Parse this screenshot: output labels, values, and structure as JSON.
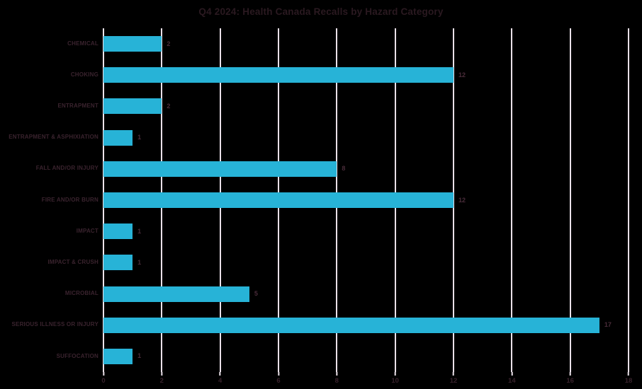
{
  "title": "Q4 2024: Health Canada Recalls by Hazard Category",
  "colors": {
    "background": "#000000",
    "bar": "#27B3D7",
    "gridline": "#E9E0E8",
    "axis_line": "#ECE3EA",
    "title_text": "#2A1920",
    "category_text": "#3A232E",
    "value_text": "#4A2C3A",
    "tick_text": "#38222C"
  },
  "chart_data": {
    "type": "bar",
    "orientation": "horizontal",
    "title": "Q4 2024: Health Canada Recalls by Hazard Category",
    "categories": [
      "CHEMICAL",
      "CHOKING",
      "ENTRAPMENT",
      "ENTRAPMENT & ASPHIXIATION",
      "FALL AND/OR INJURY",
      "FIRE AND/OR BURN",
      "IMPACT",
      "IMPACT & CRUSH",
      "MICROBIAL",
      "SERIOUS ILLNESS OR INJURY",
      "SUFFOCATION"
    ],
    "values": [
      2,
      12,
      2,
      1,
      8,
      12,
      1,
      1,
      5,
      17,
      1
    ],
    "xlabel": "",
    "ylabel": "",
    "xlim": [
      0,
      18
    ],
    "x_ticks": [
      0,
      2,
      4,
      6,
      8,
      10,
      12,
      14,
      16,
      18
    ],
    "grid": true,
    "value_labels": true,
    "legend": "none"
  }
}
